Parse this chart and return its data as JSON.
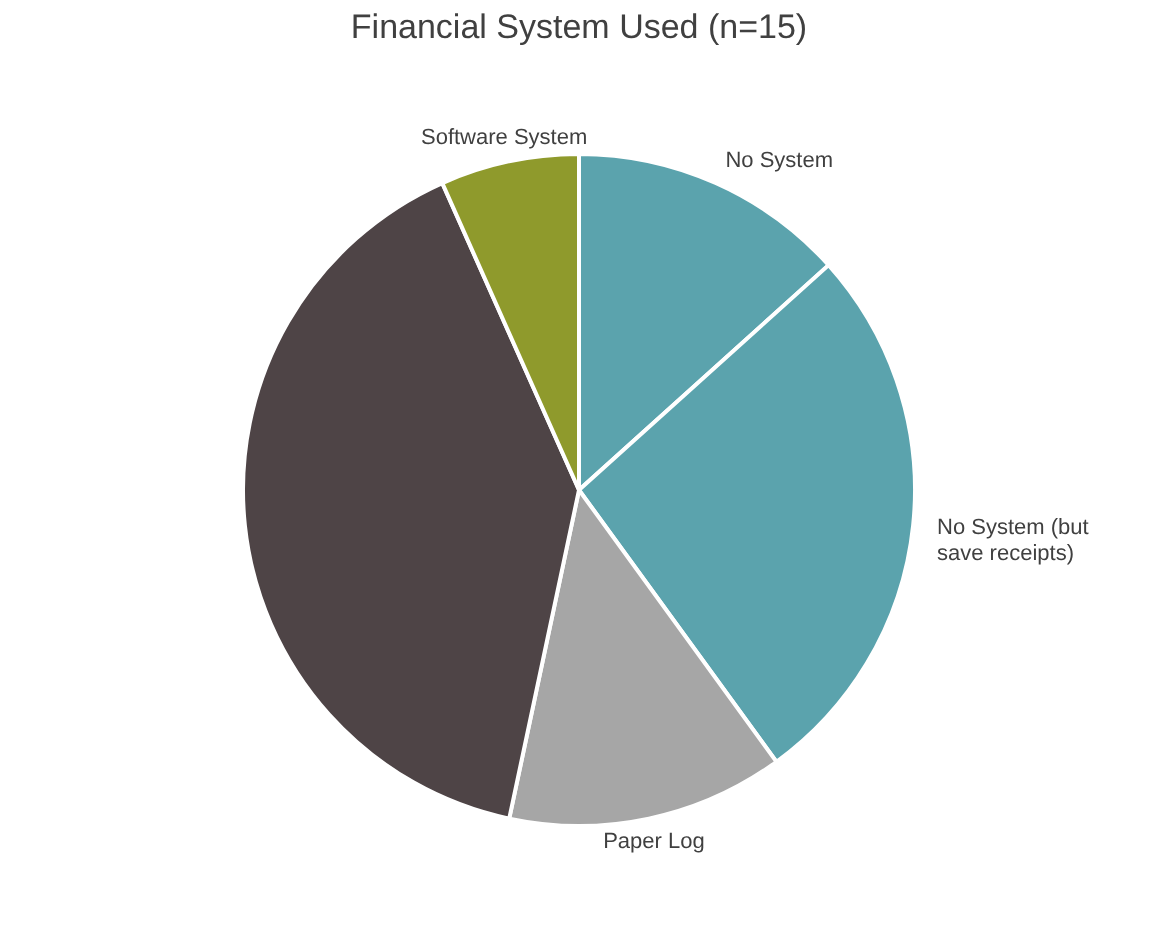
{
  "chart_data": {
    "type": "pie",
    "title": "Financial System Used (n=15)",
    "categories": [
      "No System",
      "No System (but save receipts)",
      "Paper Log",
      null,
      "Software System"
    ],
    "values": [
      13.33,
      26.67,
      13.33,
      40,
      6.67
    ],
    "colors": [
      "#5ba3ad",
      "#5ba3ad",
      "#a6a6a6",
      "#4e4446",
      "#8f9a2c"
    ],
    "legend": false
  }
}
